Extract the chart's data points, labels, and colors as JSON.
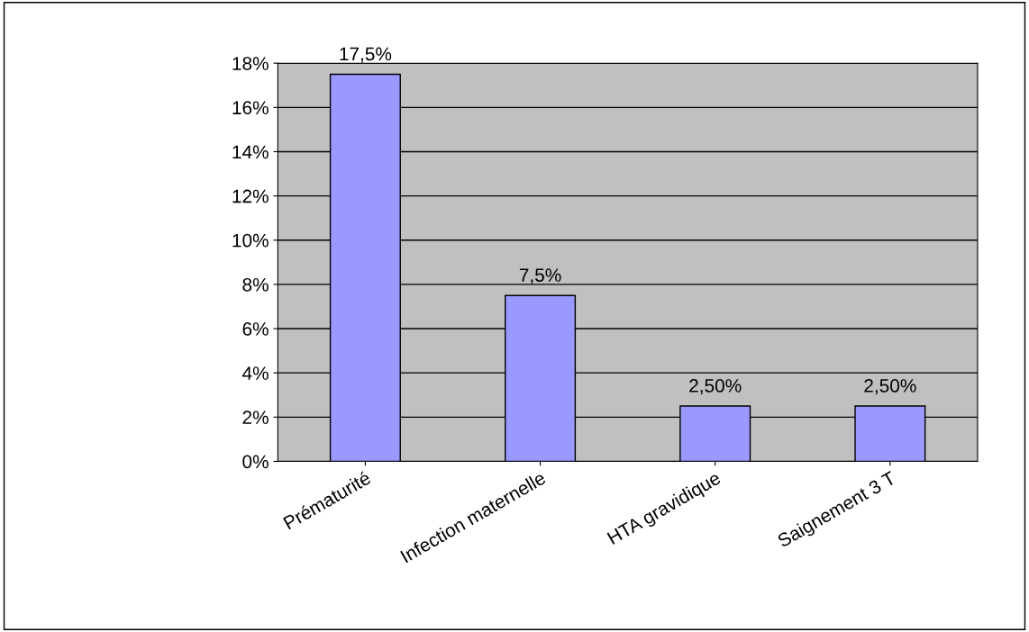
{
  "chart_data": {
    "type": "bar",
    "categories": [
      "Prématurité",
      "Infection maternelle",
      "HTA gravidique",
      "Saignement 3 T"
    ],
    "values": [
      17.5,
      7.5,
      2.5,
      2.5
    ],
    "value_labels": [
      "17,5%",
      "7,5%",
      "2,50%",
      "2,50%"
    ],
    "color": "#9999ff",
    "ylim": [
      0,
      18
    ],
    "yticks": [
      {
        "value": 0,
        "label": "0%"
      },
      {
        "value": 2,
        "label": "2%"
      },
      {
        "value": 4,
        "label": "4%"
      },
      {
        "value": 6,
        "label": "6%"
      },
      {
        "value": 8,
        "label": "8%"
      },
      {
        "value": 10,
        "label": "10%"
      },
      {
        "value": 12,
        "label": "12%"
      },
      {
        "value": 14,
        "label": "14%"
      },
      {
        "value": 16,
        "label": "16%"
      },
      {
        "value": 18,
        "label": "18%"
      }
    ],
    "grid": "y"
  }
}
